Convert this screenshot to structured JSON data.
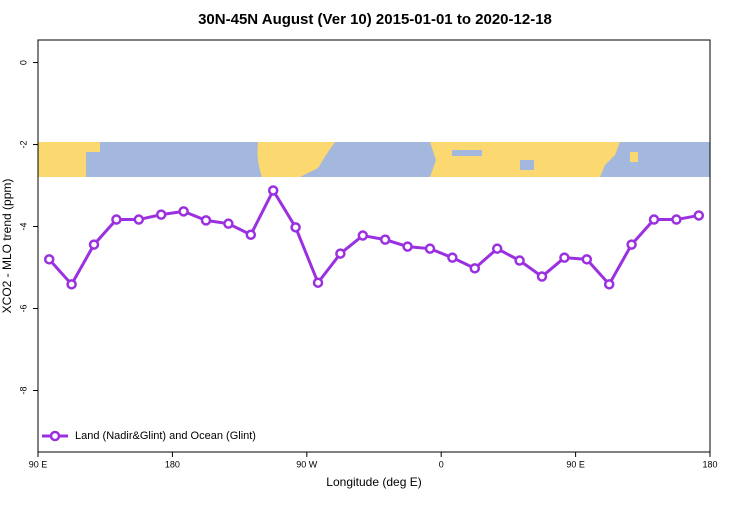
{
  "chart_data": {
    "type": "line",
    "title": "30N-45N August (Ver 10)   2015-01-01 to 2020-12-18",
    "x_label": "Longitude (deg E)",
    "y_label": "XCO2 - MLO trend (ppm)",
    "x": [
      97.5,
      112.5,
      127.5,
      142.5,
      157.5,
      172.5,
      187.5,
      202.5,
      217.5,
      232.5,
      247.5,
      262.5,
      277.5,
      292.5,
      307.5,
      322.5,
      337.5,
      352.5,
      367.5,
      382.5,
      397.5,
      412.5,
      427.5,
      442.5,
      457.5,
      472.5,
      487.5,
      502.5,
      517.5,
      532.5
    ],
    "series": [
      {
        "name": "Land (Nadir&Glint) and Ocean (Glint)",
        "color": "#9b30e0",
        "values": [
          -4.8,
          -5.41,
          -4.44,
          -3.83,
          -3.83,
          -3.71,
          -3.63,
          -3.85,
          -3.93,
          -4.2,
          -3.12,
          -4.02,
          -5.37,
          -4.66,
          -4.22,
          -4.32,
          -4.49,
          -4.54,
          -4.76,
          -5.02,
          -4.54,
          -4.83,
          -5.22,
          -4.76,
          -4.8,
          -5.41,
          -4.44,
          -3.83,
          -3.83,
          -3.73
        ]
      }
    ],
    "xlim": [
      90,
      540
    ],
    "ylim": [
      -9.5,
      0.55
    ],
    "xticks": [
      {
        "value": 90,
        "label": "90 E"
      },
      {
        "value": 180,
        "label": "180"
      },
      {
        "value": 270,
        "label": "90 W"
      },
      {
        "value": 360,
        "label": "0"
      },
      {
        "value": 450,
        "label": "90 E"
      },
      {
        "value": 540,
        "label": "180"
      }
    ],
    "yticks": [
      0,
      -2,
      -4,
      -6,
      -8
    ],
    "legend": "bottom-left"
  }
}
